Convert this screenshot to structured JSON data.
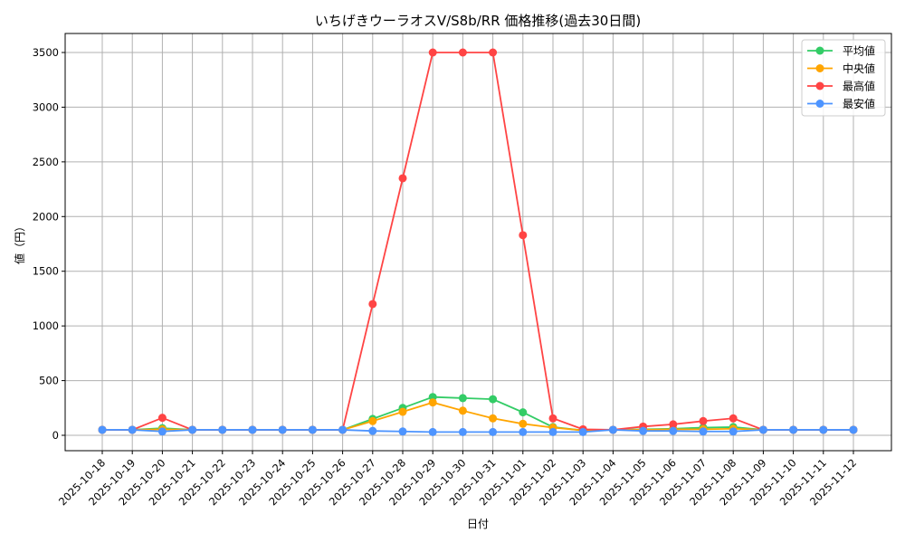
{
  "chart_data": {
    "type": "line",
    "title": "いちげきウーラオスV/S8b/RR 価格推移(過去30日間)",
    "xlabel": "日付",
    "ylabel": "値（円）",
    "ylim": [
      -130,
      3670
    ],
    "yticks": [
      0,
      500,
      1000,
      1500,
      2000,
      2500,
      3000,
      3500
    ],
    "grid": true,
    "legend_position": "upper right",
    "categories": [
      "2025-10-18",
      "2025-10-19",
      "2025-10-20",
      "2025-10-21",
      "2025-10-22",
      "2025-10-23",
      "2025-10-24",
      "2025-10-25",
      "2025-10-26",
      "2025-10-27",
      "2025-10-28",
      "2025-10-29",
      "2025-10-30",
      "2025-10-31",
      "2025-11-01",
      "2025-11-02",
      "2025-11-03",
      "2025-11-04",
      "2025-11-05",
      "2025-11-06",
      "2025-11-07",
      "2025-11-08",
      "2025-11-09",
      "2025-11-10",
      "2025-11-11",
      "2025-11-12"
    ],
    "series": [
      {
        "name": "平均値",
        "color": "#33cc66",
        "values": [
          50,
          50,
          65,
          50,
          50,
          50,
          50,
          50,
          50,
          150,
          250,
          350,
          340,
          330,
          210,
          75,
          45,
          50,
          55,
          60,
          70,
          75,
          50,
          50,
          50,
          50
        ]
      },
      {
        "name": "中央値",
        "color": "#ffa500",
        "values": [
          50,
          50,
          55,
          50,
          50,
          50,
          50,
          50,
          50,
          130,
          215,
          300,
          225,
          155,
          105,
          70,
          45,
          50,
          50,
          55,
          55,
          60,
          50,
          50,
          50,
          50
        ]
      },
      {
        "name": "最高値",
        "color": "#ff4444",
        "values": [
          50,
          50,
          160,
          50,
          50,
          50,
          50,
          50,
          50,
          1200,
          2350,
          3500,
          3500,
          3500,
          1830,
          155,
          55,
          50,
          80,
          100,
          130,
          155,
          50,
          50,
          50,
          50
        ]
      },
      {
        "name": "最安値",
        "color": "#4d94ff",
        "values": [
          50,
          50,
          35,
          50,
          50,
          50,
          50,
          50,
          50,
          40,
          35,
          30,
          30,
          30,
          30,
          30,
          30,
          50,
          40,
          40,
          35,
          35,
          50,
          50,
          50,
          50
        ]
      }
    ]
  }
}
